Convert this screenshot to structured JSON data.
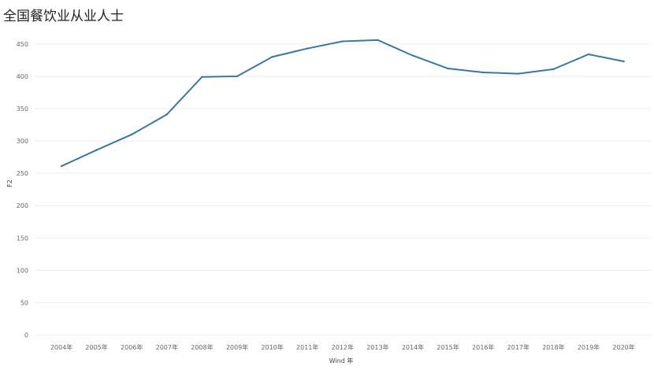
{
  "chart_data": {
    "type": "line",
    "title": "全国餐饮业从业人士",
    "xlabel": "Wind 年",
    "ylabel": "F2",
    "ylim": [
      0,
      450
    ],
    "yticks": [
      "0",
      "50",
      "100",
      "150",
      "200",
      "250",
      "300",
      "350",
      "400",
      "450"
    ],
    "categories": [
      "2004年",
      "2005年",
      "2006年",
      "2007年",
      "2008年",
      "2009年",
      "2010年",
      "2011年",
      "2012年",
      "2013年",
      "2014年",
      "2015年",
      "2016年",
      "2017年",
      "2018年",
      "2019年",
      "2020年"
    ],
    "series": [
      {
        "values": [
          261,
          286,
          310,
          341,
          399,
          400,
          430,
          443,
          454,
          456,
          432,
          412,
          406,
          404,
          411,
          434,
          423
        ]
      }
    ],
    "grid": true,
    "colors": {
      "line": "#3a77a3",
      "grid": "#eeeeee"
    }
  }
}
